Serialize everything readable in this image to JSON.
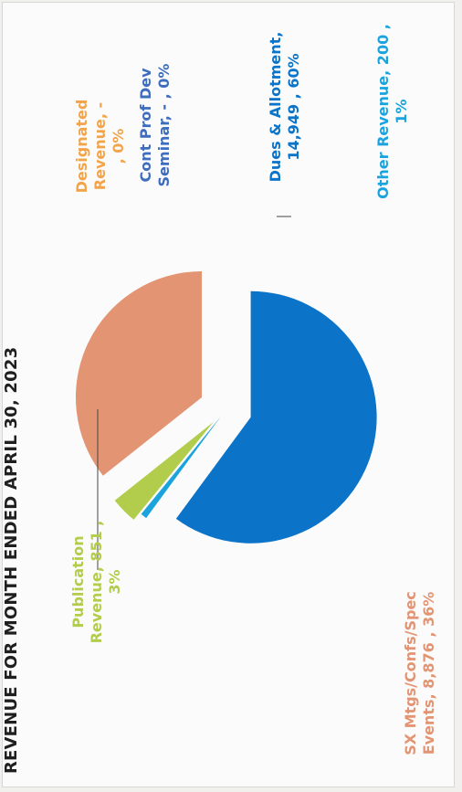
{
  "chart_data": {
    "type": "pie",
    "title": "REVENUE FOR MONTH ENDED APRIL 30, 2023",
    "slices": [
      {
        "name": "Dues & Allotment",
        "value": 14949,
        "percent": 60,
        "color": "#0b74c8",
        "label_lines": [
          "Dues & Allotment,",
          "14,949 , 60%"
        ]
      },
      {
        "name": "Other Revenue",
        "value": 200,
        "percent": 1,
        "color": "#1aa3dd",
        "label_lines": [
          "Other Revenue,  200 ,",
          "1%"
        ]
      },
      {
        "name": "Publication Revenue",
        "value": 851,
        "percent": 3,
        "color": "#b2cc4c",
        "label_lines": [
          "Publication",
          "Revenue, 851 ,",
          "3%"
        ]
      },
      {
        "name": "SX Mtgs/Confs/Spec Events",
        "value": 8876,
        "percent": 36,
        "color": "#e39472",
        "label_lines": [
          "SX Mtgs/Confs/Spec",
          "Events, 8,876 , 36%"
        ]
      },
      {
        "name": "Designated Revenue",
        "value": null,
        "percent": 0,
        "color": "#f2a44a",
        "label_lines": [
          "Designated",
          "Revenue, -",
          ", 0%"
        ]
      },
      {
        "name": "Cont Prof Dev Seminar",
        "value": null,
        "percent": 0,
        "color": "#3e6dbd",
        "label_lines": [
          "Cont Prof Dev",
          "Seminar,  -  , 0%"
        ]
      }
    ],
    "legend": "none"
  }
}
